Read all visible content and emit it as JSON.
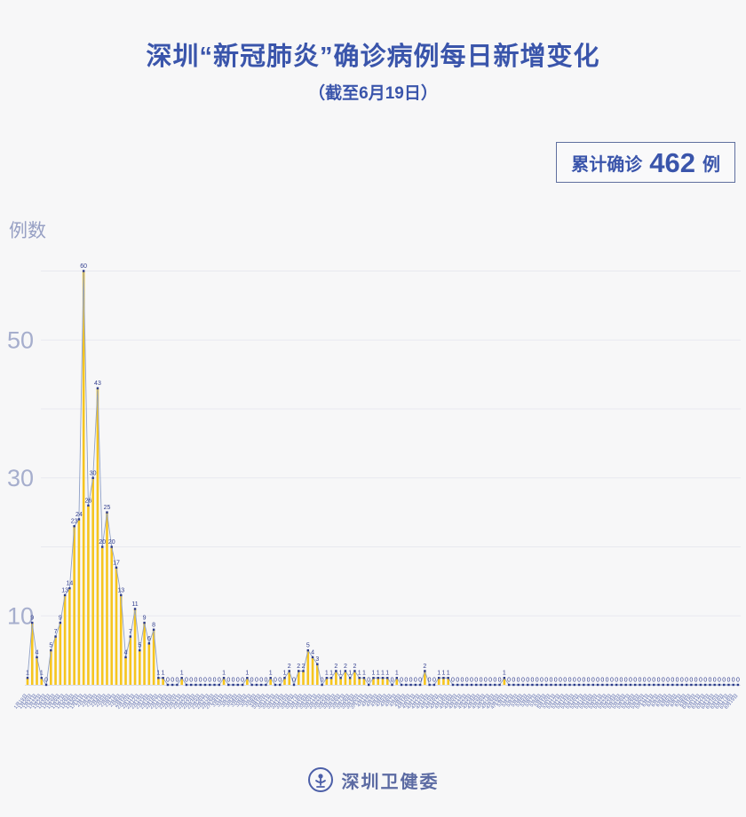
{
  "header": {
    "title": "深圳“新冠肺炎”确诊病例每日新增变化",
    "subtitle": "（截至6月19日）"
  },
  "badge": {
    "prefix": "累计确诊",
    "value": "462",
    "suffix": "例"
  },
  "footer": {
    "org": "深圳卫健委",
    "logo": "shenzhen-health-commission-emblem"
  },
  "colors": {
    "accent": "#3a55ab",
    "bar": "#f6c51e",
    "line": "#8fa0c6",
    "marker": "#2b3a8a",
    "point_label": "#333f8f",
    "y_tick": "#a6aecd",
    "grid": "#e8e9ef",
    "x_label": "#5e6eae",
    "baseline": "#d9dce8",
    "background": "#f7f7f8"
  },
  "chart_data": {
    "type": "bar",
    "overlay": "line",
    "title": "深圳“新冠肺炎”确诊病例每日新增变化（截至6月19日）",
    "xlabel": "",
    "ylabel": "例数",
    "ylim": [
      0,
      62
    ],
    "yticks": [
      10,
      30,
      50
    ],
    "gridlines": [
      10,
      20,
      30,
      40,
      50,
      60
    ],
    "legend": "none",
    "point_labels": true,
    "total": 462,
    "categories": [
      "1月19日",
      "1月20日",
      "1月21日",
      "1月22日",
      "1月23日",
      "1月24日",
      "1月25日",
      "1月26日",
      "1月27日",
      "1月28日",
      "1月29日",
      "1月30日",
      "1月31日",
      "2月1日",
      "2月2日",
      "2月3日",
      "2月4日",
      "2月5日",
      "2月6日",
      "2月7日",
      "2月8日",
      "2月9日",
      "2月10日",
      "2月11日",
      "2月12日",
      "2月13日",
      "2月14日",
      "2月15日",
      "2月16日",
      "2月17日",
      "2月18日",
      "2月19日",
      "2月20日",
      "2月21日",
      "2月22日",
      "2月23日",
      "2月24日",
      "2月25日",
      "2月26日",
      "2月27日",
      "2月28日",
      "2月29日",
      "3月1日",
      "3月2日",
      "3月3日",
      "3月4日",
      "3月5日",
      "3月6日",
      "3月7日",
      "3月8日",
      "3月9日",
      "3月10日",
      "3月11日",
      "3月12日",
      "3月13日",
      "3月14日",
      "3月15日",
      "3月16日",
      "3月17日",
      "3月18日",
      "3月19日",
      "3月20日",
      "3月21日",
      "3月22日",
      "3月23日",
      "3月24日",
      "3月25日",
      "3月26日",
      "3月27日",
      "3月28日",
      "3月29日",
      "3月30日",
      "3月31日",
      "4月1日",
      "4月2日",
      "4月3日",
      "4月4日",
      "4月5日",
      "4月6日",
      "4月7日",
      "4月8日",
      "4月9日",
      "4月10日",
      "4月11日",
      "4月12日",
      "4月13日",
      "4月14日",
      "4月15日",
      "4月16日",
      "4月17日",
      "4月18日",
      "4月19日",
      "4月20日",
      "4月21日",
      "4月22日",
      "4月23日",
      "4月24日",
      "4月25日",
      "4月26日",
      "4月27日",
      "4月28日",
      "4月29日",
      "4月30日",
      "5月1日",
      "5月2日",
      "5月3日",
      "5月4日",
      "5月5日",
      "5月6日",
      "5月7日",
      "5月8日",
      "5月9日",
      "5月10日",
      "5月11日",
      "5月12日",
      "5月13日",
      "5月14日",
      "5月15日",
      "5月16日",
      "5月17日",
      "5月18日",
      "5月19日",
      "5月20日",
      "5月21日",
      "5月22日",
      "5月23日",
      "5月24日",
      "5月25日",
      "5月26日",
      "5月27日",
      "5月28日",
      "5月29日",
      "5月30日",
      "5月31日",
      "6月1日",
      "6月2日",
      "6月3日",
      "6月4日",
      "6月5日",
      "6月6日",
      "6月7日",
      "6月8日",
      "6月9日",
      "6月10日",
      "6月11日",
      "6月12日",
      "6月13日",
      "6月14日",
      "6月15日",
      "6月16日",
      "6月17日",
      "6月18日",
      "6月19日"
    ],
    "values": [
      1,
      9,
      4,
      1,
      0,
      5,
      7,
      9,
      13,
      14,
      23,
      24,
      60,
      26,
      30,
      43,
      20,
      25,
      20,
      17,
      13,
      4,
      7,
      11,
      5,
      9,
      6,
      8,
      1,
      1,
      0,
      0,
      0,
      1,
      0,
      0,
      0,
      0,
      0,
      0,
      0,
      0,
      1,
      0,
      0,
      0,
      0,
      1,
      0,
      0,
      0,
      0,
      1,
      0,
      0,
      1,
      2,
      0,
      2,
      2,
      5,
      4,
      3,
      0,
      1,
      1,
      2,
      1,
      2,
      1,
      2,
      1,
      1,
      0,
      1,
      1,
      1,
      1,
      0,
      1,
      0,
      0,
      0,
      0,
      0,
      2,
      0,
      0,
      1,
      1,
      1,
      0,
      0,
      0,
      0,
      0,
      0,
      0,
      0,
      0,
      0,
      0,
      1,
      0,
      0,
      0,
      0,
      0,
      0,
      0,
      0,
      0,
      0,
      0,
      0,
      0,
      0,
      0,
      0,
      0,
      0,
      0,
      0,
      0,
      0,
      0,
      0,
      0,
      0,
      0,
      0,
      0,
      0,
      0,
      0,
      0,
      0,
      0,
      0,
      0,
      0,
      0,
      0,
      0,
      0,
      0,
      0,
      0,
      0,
      0,
      0,
      0,
      0
    ]
  }
}
